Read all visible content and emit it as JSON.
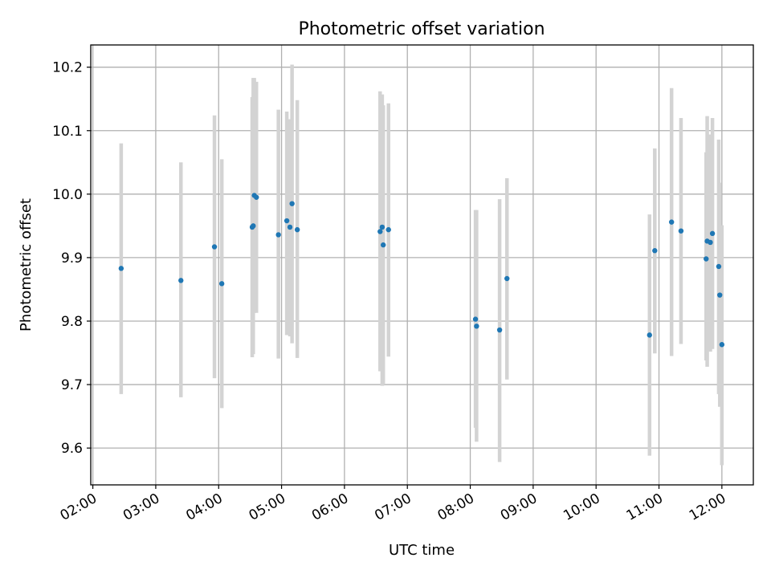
{
  "chart_data": {
    "type": "scatter",
    "title": "Photometric offset variation",
    "xlabel": "UTC time",
    "ylabel": "Photometric offset",
    "x_is_time": true,
    "xlim": [
      "01:58",
      "12:30"
    ],
    "ylim": [
      9.542,
      10.235
    ],
    "xticks": [
      "02:00",
      "03:00",
      "04:00",
      "05:00",
      "06:00",
      "07:00",
      "08:00",
      "09:00",
      "10:00",
      "11:00",
      "12:00"
    ],
    "yticks": [
      "9.6",
      "9.7",
      "9.8",
      "9.9",
      "10.0",
      "10.1",
      "10.2"
    ],
    "grid": true,
    "colors": {
      "point": "#1f77b4",
      "errorbar": "#d3d3d3"
    },
    "series": [
      {
        "points": [
          {
            "x": "02:27",
            "y": 9.883,
            "ylow": 9.685,
            "yhigh": 10.08
          },
          {
            "x": "03:24",
            "y": 9.864,
            "ylow": 9.68,
            "yhigh": 10.05
          },
          {
            "x": "03:56",
            "y": 9.917,
            "ylow": 9.71,
            "yhigh": 10.124
          },
          {
            "x": "04:03",
            "y": 9.859,
            "ylow": 9.663,
            "yhigh": 10.055
          },
          {
            "x": "04:32",
            "y": 9.948,
            "ylow": 9.743,
            "yhigh": 10.153
          },
          {
            "x": "04:33",
            "y": 9.95,
            "ylow": 9.748,
            "yhigh": 10.183
          },
          {
            "x": "04:34",
            "y": 9.998,
            "ylow": 9.813,
            "yhigh": 10.183
          },
          {
            "x": "04:36",
            "y": 9.995,
            "ylow": 9.813,
            "yhigh": 10.177
          },
          {
            "x": "04:57",
            "y": 9.936,
            "ylow": 9.741,
            "yhigh": 10.133
          },
          {
            "x": "05:05",
            "y": 9.958,
            "ylow": 9.778,
            "yhigh": 10.13
          },
          {
            "x": "05:08",
            "y": 9.948,
            "ylow": 9.776,
            "yhigh": 10.118
          },
          {
            "x": "05:10",
            "y": 9.985,
            "ylow": 9.765,
            "yhigh": 10.204
          },
          {
            "x": "05:15",
            "y": 9.944,
            "ylow": 9.742,
            "yhigh": 10.148
          },
          {
            "x": "06:34",
            "y": 9.941,
            "ylow": 9.721,
            "yhigh": 10.162
          },
          {
            "x": "06:36",
            "y": 9.948,
            "ylow": 9.698,
            "yhigh": 10.157
          },
          {
            "x": "06:37",
            "y": 9.92,
            "ylow": 9.7,
            "yhigh": 10.14
          },
          {
            "x": "06:42",
            "y": 9.944,
            "ylow": 9.744,
            "yhigh": 10.143
          },
          {
            "x": "08:05",
            "y": 9.803,
            "ylow": 9.632,
            "yhigh": 9.975
          },
          {
            "x": "08:06",
            "y": 9.792,
            "ylow": 9.61,
            "yhigh": 9.975
          },
          {
            "x": "08:28",
            "y": 9.786,
            "ylow": 9.578,
            "yhigh": 9.992
          },
          {
            "x": "08:35",
            "y": 9.867,
            "ylow": 9.708,
            "yhigh": 10.025
          },
          {
            "x": "10:51",
            "y": 9.778,
            "ylow": 9.588,
            "yhigh": 9.968
          },
          {
            "x": "10:56",
            "y": 9.911,
            "ylow": 9.749,
            "yhigh": 10.072
          },
          {
            "x": "11:12",
            "y": 9.956,
            "ylow": 9.745,
            "yhigh": 10.167
          },
          {
            "x": "11:21",
            "y": 9.942,
            "ylow": 9.764,
            "yhigh": 10.12
          },
          {
            "x": "11:45",
            "y": 9.898,
            "ylow": 9.738,
            "yhigh": 10.066
          },
          {
            "x": "11:46",
            "y": 9.926,
            "ylow": 9.728,
            "yhigh": 10.123
          },
          {
            "x": "11:49",
            "y": 9.924,
            "ylow": 9.752,
            "yhigh": 10.094
          },
          {
            "x": "11:51",
            "y": 9.938,
            "ylow": 9.756,
            "yhigh": 10.12
          },
          {
            "x": "11:57",
            "y": 9.886,
            "ylow": 9.685,
            "yhigh": 10.086
          },
          {
            "x": "11:58",
            "y": 9.841,
            "ylow": 9.665,
            "yhigh": 10.018
          },
          {
            "x": "12:00",
            "y": 9.763,
            "ylow": 9.573,
            "yhigh": 9.951
          }
        ]
      }
    ]
  }
}
